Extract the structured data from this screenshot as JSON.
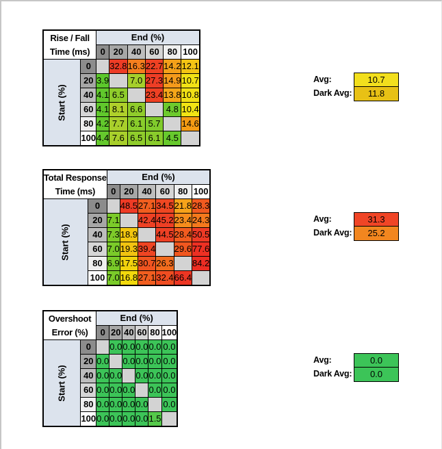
{
  "labels": {
    "avg": "Avg:",
    "dark_avg": "Dark Avg:"
  },
  "style": {
    "header_gradient": [
      "#8c8c8c",
      "#a6a6a6",
      "#bdbdbd",
      "#d6d6d6",
      "#efefef",
      "#ffffff"
    ],
    "label_band_bg": "#dce3ed",
    "blank_cell_bg": "#d3d3d3",
    "border_color": "#000000",
    "page_edge_color": "#c6c6c6"
  },
  "chart_data": [
    {
      "id": "rise-fall",
      "type": "heatmap",
      "title_lines": [
        "Rise / Fall",
        "Time (ms)"
      ],
      "x_axis_label": "End (%)",
      "y_axis_label": "Start (%)",
      "x": [
        "0",
        "20",
        "40",
        "60",
        "80",
        "100"
      ],
      "y": [
        "0",
        "20",
        "40",
        "60",
        "80",
        "100"
      ],
      "cells": [
        [
          null,
          {
            "v": 32.8,
            "c": "#ED3C25"
          },
          {
            "v": 16.3,
            "c": "#F57E1E"
          },
          {
            "v": 22.7,
            "c": "#EF4123"
          },
          {
            "v": 14.2,
            "c": "#F4A019"
          },
          {
            "v": 12.1,
            "c": "#F3C414"
          }
        ],
        [
          {
            "v": 3.9,
            "c": "#5CC82B"
          },
          null,
          {
            "v": 7.0,
            "c": "#A5CF2B"
          },
          {
            "v": 27.3,
            "c": "#EE3D25"
          },
          {
            "v": 14.9,
            "c": "#F49A1B"
          },
          {
            "v": 10.7,
            "c": "#F1E115"
          }
        ],
        [
          {
            "v": 4.1,
            "c": "#60C82C"
          },
          {
            "v": 6.5,
            "c": "#8FCC2B"
          },
          null,
          {
            "v": 23.4,
            "c": "#EF4023"
          },
          {
            "v": 13.8,
            "c": "#F4A619"
          },
          {
            "v": 10.8,
            "c": "#F1E015"
          }
        ],
        [
          {
            "v": 4.1,
            "c": "#60C82C"
          },
          {
            "v": 8.1,
            "c": "#AFD02A"
          },
          {
            "v": 6.6,
            "c": "#90CC2B"
          },
          null,
          {
            "v": 4.8,
            "c": "#6DCA2D"
          },
          {
            "v": 10.4,
            "c": "#F1E414"
          }
        ],
        [
          {
            "v": 4.2,
            "c": "#62C82C"
          },
          {
            "v": 7.7,
            "c": "#A9CF2B"
          },
          {
            "v": 6.1,
            "c": "#89CC2B"
          },
          {
            "v": 5.7,
            "c": "#80CB2C"
          },
          null,
          {
            "v": 14.6,
            "c": "#F49B13"
          }
        ],
        [
          {
            "v": 4.4,
            "c": "#65C92D"
          },
          {
            "v": 7.6,
            "c": "#A8CF2B"
          },
          {
            "v": 6.5,
            "c": "#8FCC2B"
          },
          {
            "v": 6.1,
            "c": "#89CC2B"
          },
          {
            "v": 4.5,
            "c": "#67C92D"
          },
          null
        ]
      ],
      "avg": {
        "value": 10.7,
        "color": "#F2DF1D"
      },
      "dark_avg": {
        "value": 11.8,
        "color": "#E8C115"
      }
    },
    {
      "id": "total-response",
      "type": "heatmap",
      "title_lines": [
        "Total Response",
        "Time (ms)"
      ],
      "x_axis_label": "End (%)",
      "y_axis_label": "Start (%)",
      "x": [
        "0",
        "20",
        "40",
        "60",
        "80",
        "100"
      ],
      "y": [
        "0",
        "20",
        "40",
        "60",
        "80",
        "100"
      ],
      "cells": [
        [
          null,
          {
            "v": 48.5,
            "c": "#EE3B25"
          },
          {
            "v": 27.1,
            "c": "#F15E1F"
          },
          {
            "v": 34.5,
            "c": "#EF4722"
          },
          {
            "v": 21.8,
            "c": "#F6A31A"
          },
          {
            "v": 28.3,
            "c": "#F15A1F"
          }
        ],
        [
          {
            "v": 7.1,
            "c": "#7BCB29"
          },
          null,
          {
            "v": 42.4,
            "c": "#EE4124"
          },
          {
            "v": 45.2,
            "c": "#EE3F24"
          },
          {
            "v": 23.4,
            "c": "#F68D1C"
          },
          {
            "v": 24.3,
            "c": "#F4791D"
          }
        ],
        [
          {
            "v": 7.3,
            "c": "#7DCB29"
          },
          {
            "v": 18.9,
            "c": "#F2C60F"
          },
          null,
          {
            "v": 44.5,
            "c": "#EE4024"
          },
          {
            "v": 28.4,
            "c": "#F15B1F"
          },
          {
            "v": 50.5,
            "c": "#EE3A25"
          }
        ],
        [
          {
            "v": 7.0,
            "c": "#7ACB29"
          },
          {
            "v": 19.3,
            "c": "#F2C310"
          },
          {
            "v": 39.4,
            "c": "#EF4523"
          },
          null,
          {
            "v": 29.6,
            "c": "#F1571F"
          },
          {
            "v": 77.6,
            "c": "#ED3023"
          }
        ],
        [
          {
            "v": 6.9,
            "c": "#79CB29"
          },
          {
            "v": 17.5,
            "c": "#F2D20D"
          },
          {
            "v": 30.7,
            "c": "#F05420"
          },
          {
            "v": 26.3,
            "c": "#F26C1E"
          },
          null,
          {
            "v": 84.2,
            "c": "#ED2D23"
          }
        ],
        [
          {
            "v": 7.0,
            "c": "#7ACB29"
          },
          {
            "v": 16.8,
            "c": "#F2D90C"
          },
          {
            "v": 27.1,
            "c": "#F15E1F"
          },
          {
            "v": 32.4,
            "c": "#F04D21"
          },
          {
            "v": 66.4,
            "c": "#ED3623"
          },
          null
        ]
      ],
      "avg": {
        "value": 31.3,
        "color": "#F04526"
      },
      "dark_avg": {
        "value": 25.2,
        "color": "#F2861F"
      }
    },
    {
      "id": "overshoot",
      "type": "heatmap",
      "title_lines": [
        "Overshoot",
        "Error (%)"
      ],
      "x_axis_label": "End (%)",
      "y_axis_label": "Start (%)",
      "x": [
        "0",
        "20",
        "40",
        "60",
        "80",
        "100"
      ],
      "y": [
        "0",
        "20",
        "40",
        "60",
        "80",
        "100"
      ],
      "cells": [
        [
          null,
          {
            "v": 0.0,
            "c": "#3CC458"
          },
          {
            "v": 0.0,
            "c": "#3CC458"
          },
          {
            "v": 0.0,
            "c": "#3CC458"
          },
          {
            "v": 0.0,
            "c": "#3CC458"
          },
          {
            "v": 0.0,
            "c": "#3CC458"
          }
        ],
        [
          {
            "v": 0.0,
            "c": "#3CC458"
          },
          null,
          {
            "v": 0.0,
            "c": "#3CC458"
          },
          {
            "v": 0.0,
            "c": "#3CC458"
          },
          {
            "v": 0.0,
            "c": "#3CC458"
          },
          {
            "v": 0.0,
            "c": "#3CC458"
          }
        ],
        [
          {
            "v": 0.0,
            "c": "#3CC458"
          },
          {
            "v": 0.0,
            "c": "#3CC458"
          },
          null,
          {
            "v": 0.0,
            "c": "#3CC458"
          },
          {
            "v": 0.0,
            "c": "#3CC458"
          },
          {
            "v": 0.0,
            "c": "#3CC458"
          }
        ],
        [
          {
            "v": 0.0,
            "c": "#3CC458"
          },
          {
            "v": 0.0,
            "c": "#3CC458"
          },
          {
            "v": 0.0,
            "c": "#3CC458"
          },
          null,
          {
            "v": 0.0,
            "c": "#3CC458"
          },
          {
            "v": 0.0,
            "c": "#3CC458"
          }
        ],
        [
          {
            "v": 0.0,
            "c": "#3CC458"
          },
          {
            "v": 0.0,
            "c": "#3CC458"
          },
          {
            "v": 0.0,
            "c": "#3CC458"
          },
          {
            "v": 0.0,
            "c": "#3CC458"
          },
          null,
          {
            "v": 0.0,
            "c": "#3CC458"
          }
        ],
        [
          {
            "v": 0.0,
            "c": "#3CC458"
          },
          {
            "v": 0.0,
            "c": "#3CC458"
          },
          {
            "v": 0.0,
            "c": "#3CC458"
          },
          {
            "v": 0.0,
            "c": "#3CC458"
          },
          {
            "v": 1.5,
            "c": "#55C94A"
          },
          null
        ]
      ],
      "avg": {
        "value": 0.0,
        "color": "#3CC458"
      },
      "dark_avg": {
        "value": 0.0,
        "color": "#3CC458"
      }
    }
  ]
}
